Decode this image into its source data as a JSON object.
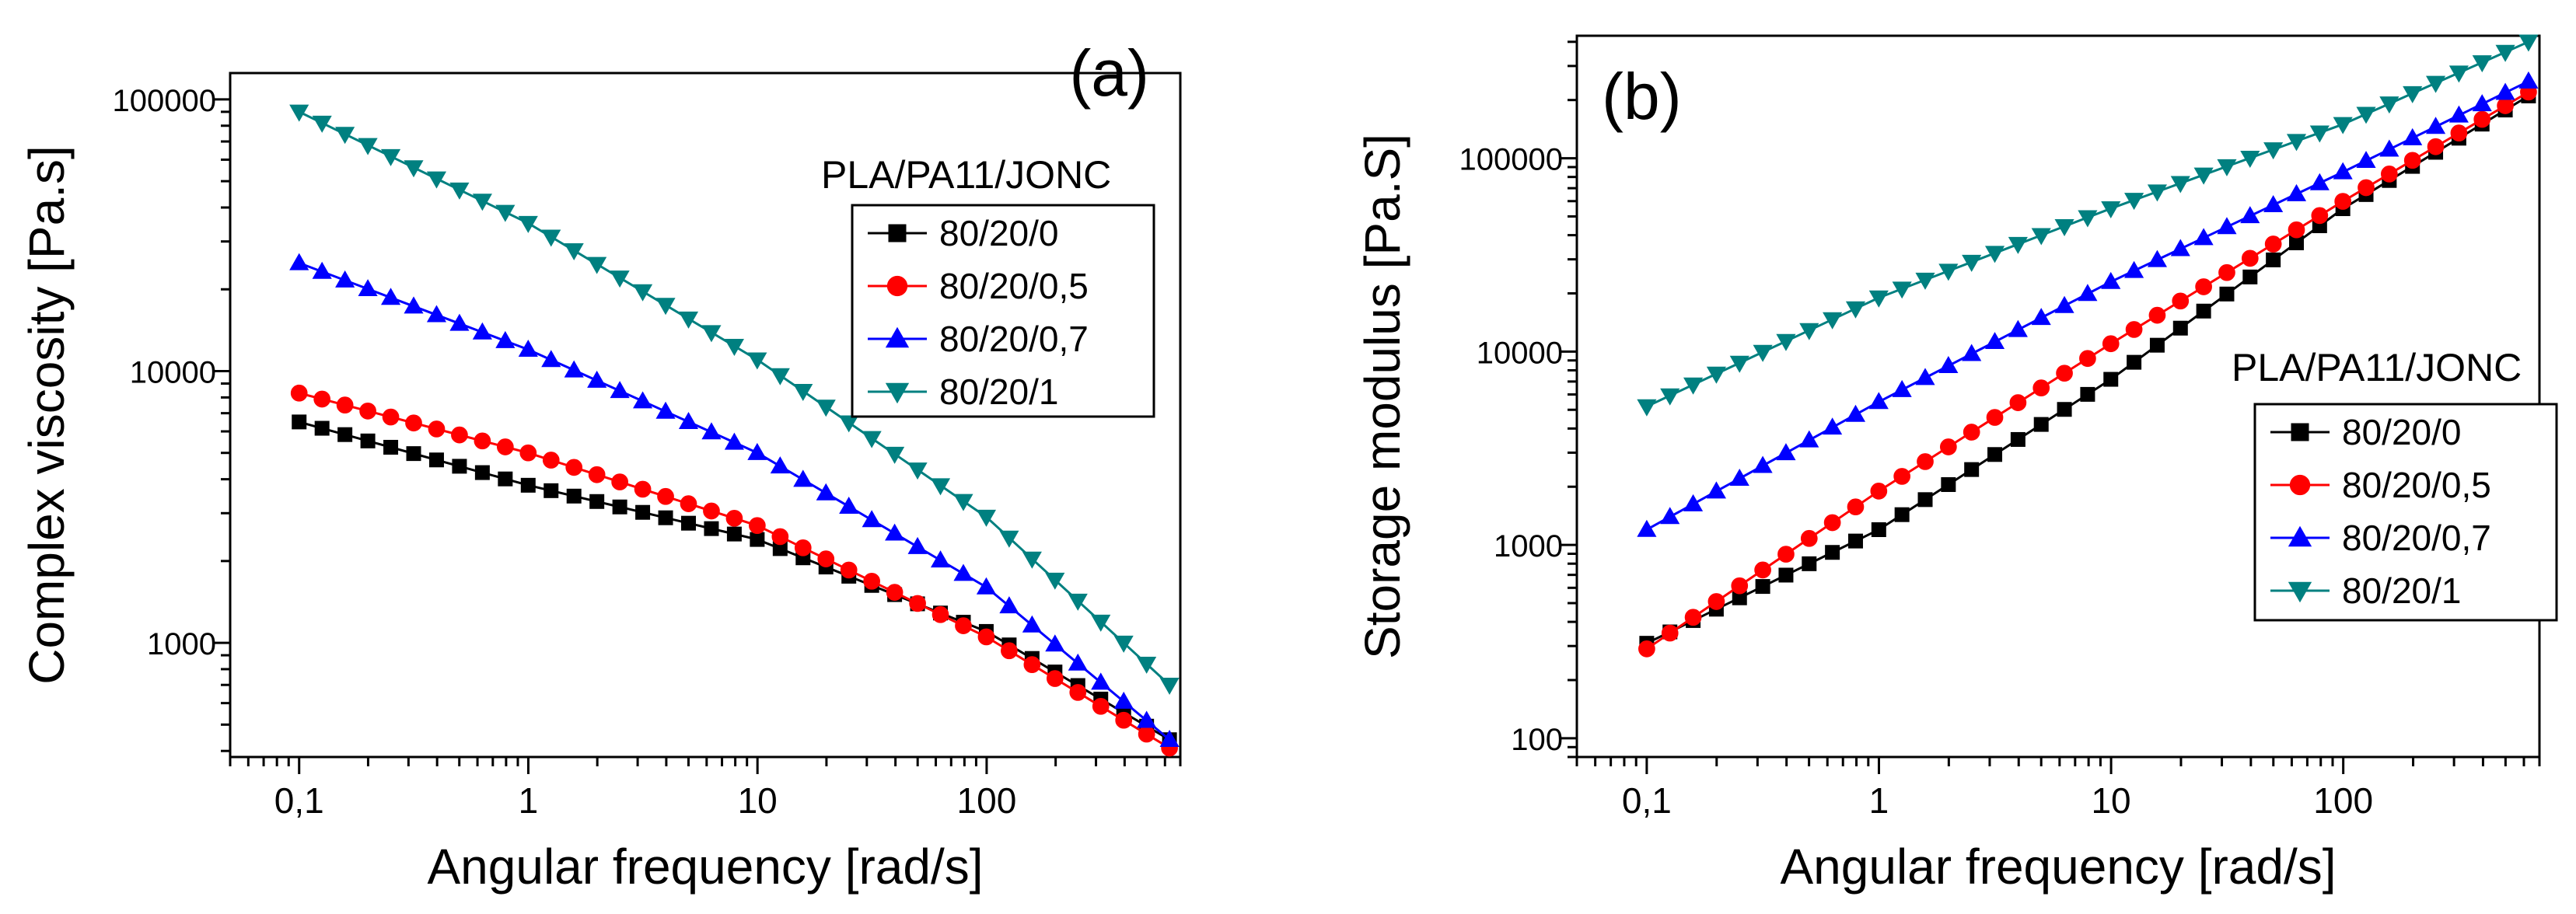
{
  "colors": {
    "black": "#000000",
    "red": "#ff0000",
    "blue": "#0000ff",
    "teal": "#008080"
  },
  "chart_data": [
    {
      "id": "a",
      "type": "scatter",
      "panel_label": "(a)",
      "title": "",
      "xlabel": "Angular frequency [rad/s]",
      "ylabel": "Complex viscosity [Pa.s]",
      "xscale": "log",
      "yscale": "log",
      "xlim": [
        0.05,
        700
      ],
      "ylim": [
        380,
        125000
      ],
      "xticks": [
        {
          "value": 0.1,
          "label": "0,1"
        },
        {
          "value": 1,
          "label": "1"
        },
        {
          "value": 10,
          "label": "10"
        },
        {
          "value": 100,
          "label": "100"
        }
      ],
      "yticks": [
        {
          "value": 1000,
          "label": "1000"
        },
        {
          "value": 10000,
          "label": "10000"
        },
        {
          "value": 100000,
          "label": "100000"
        }
      ],
      "legend_title": "PLA/PA11/JONC",
      "legend_position": "top-right",
      "series": [
        {
          "name": "80/20/0",
          "color": "black",
          "marker": "square",
          "x_range": [
            0.1,
            628
          ],
          "points": 39,
          "y_anchors": [
            [
              0.1,
              6500
            ],
            [
              1,
              3800
            ],
            [
              10,
              2400
            ],
            [
              100,
              1100
            ],
            [
              628,
              440
            ]
          ]
        },
        {
          "name": "80/20/0,5",
          "color": "red",
          "marker": "circle",
          "x_range": [
            0.1,
            628
          ],
          "points": 39,
          "y_anchors": [
            [
              0.1,
              8300
            ],
            [
              1,
              5000
            ],
            [
              10,
              2700
            ],
            [
              100,
              1050
            ],
            [
              628,
              410
            ]
          ]
        },
        {
          "name": "80/20/0,7",
          "color": "blue",
          "marker": "triangle-up",
          "x_range": [
            0.1,
            628
          ],
          "points": 39,
          "y_anchors": [
            [
              0.1,
              25000
            ],
            [
              1,
              12000
            ],
            [
              10,
              5000
            ],
            [
              100,
              1600
            ],
            [
              628,
              440
            ]
          ]
        },
        {
          "name": "80/20/1",
          "color": "teal",
          "marker": "triangle-down",
          "x_range": [
            0.1,
            628
          ],
          "points": 39,
          "y_anchors": [
            [
              0.1,
              90000
            ],
            [
              1,
              35000
            ],
            [
              10,
              11000
            ],
            [
              100,
              2900
            ],
            [
              628,
              700
            ]
          ]
        }
      ]
    },
    {
      "id": "b",
      "type": "scatter",
      "panel_label": "(b)",
      "title": "",
      "xlabel": "Angular frequency [rad/s]",
      "ylabel": "Storage modulus [Pa.S]",
      "xscale": "log",
      "yscale": "log",
      "xlim": [
        0.05,
        700
      ],
      "ylim": [
        80,
        430000
      ],
      "xticks": [
        {
          "value": 0.1,
          "label": "0,1"
        },
        {
          "value": 1,
          "label": "1"
        },
        {
          "value": 10,
          "label": "10"
        },
        {
          "value": 100,
          "label": "100"
        }
      ],
      "yticks": [
        {
          "value": 100,
          "label": "100"
        },
        {
          "value": 1000,
          "label": "1000"
        },
        {
          "value": 10000,
          "label": "10000"
        },
        {
          "value": 100000,
          "label": "100000"
        }
      ],
      "legend_title": "PLA/PA11/JONC",
      "legend_position": "bottom-right",
      "series": [
        {
          "name": "80/20/0",
          "color": "black",
          "marker": "square",
          "x_range": [
            0.1,
            628
          ],
          "points": 39,
          "y_anchors": [
            [
              0.1,
              310
            ],
            [
              1,
              1200
            ],
            [
              10,
              7200
            ],
            [
              100,
              55000
            ],
            [
              628,
              210000
            ]
          ]
        },
        {
          "name": "80/20/0,5",
          "color": "red",
          "marker": "circle",
          "x_range": [
            0.1,
            628
          ],
          "points": 39,
          "y_anchors": [
            [
              0.1,
              290
            ],
            [
              1,
              1900
            ],
            [
              10,
              11000
            ],
            [
              100,
              60000
            ],
            [
              628,
              220000
            ]
          ]
        },
        {
          "name": "80/20/0,7",
          "color": "blue",
          "marker": "triangle-up",
          "x_range": [
            0.1,
            628
          ],
          "points": 39,
          "y_anchors": [
            [
              0.1,
              1200
            ],
            [
              1,
              5500
            ],
            [
              10,
              23000
            ],
            [
              100,
              85000
            ],
            [
              628,
              250000
            ]
          ]
        },
        {
          "name": "80/20/1",
          "color": "teal",
          "marker": "triangle-down",
          "x_range": [
            0.1,
            628
          ],
          "points": 39,
          "y_anchors": [
            [
              0.1,
              5200
            ],
            [
              1,
              19000
            ],
            [
              10,
              55000
            ],
            [
              100,
              150000
            ],
            [
              628,
              400000
            ]
          ]
        }
      ]
    }
  ]
}
